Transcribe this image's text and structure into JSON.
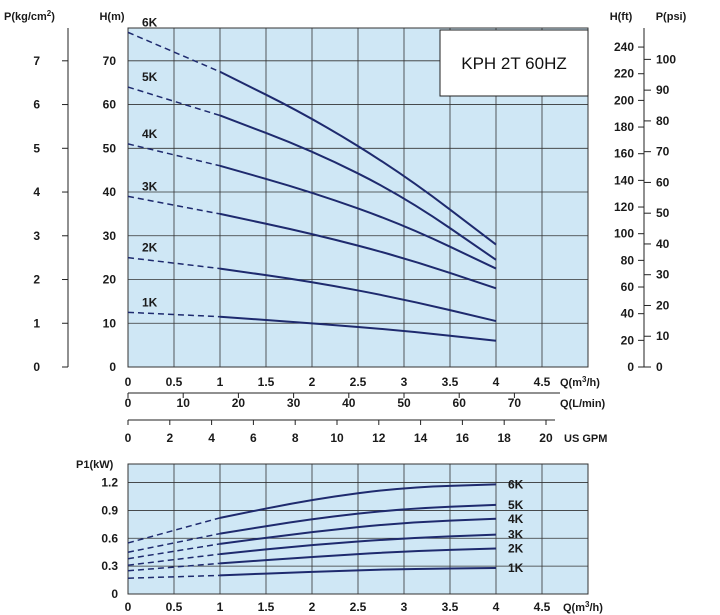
{
  "colors": {
    "plot_background": "#cfe7f5",
    "grid": "#333333",
    "curve": "#1e2a6e"
  },
  "chart_data": [
    {
      "type": "line",
      "title": "KPH 2T 60HZ",
      "grid": true,
      "x_axes": [
        {
          "label": "Q(m³/h)",
          "label_base": "Q(m",
          "label_sup": "3",
          "label_tail": "/h)",
          "ticks": [
            "0",
            "0.5",
            "1",
            "1.5",
            "2",
            "2.5",
            "3",
            "3.5",
            "4",
            "4.5"
          ],
          "range": [
            0,
            5
          ]
        },
        {
          "label": "Q(L/min)",
          "ticks": [
            "0",
            "10",
            "20",
            "30",
            "40",
            "50",
            "60",
            "70"
          ],
          "range": [
            0,
            83.333
          ]
        },
        {
          "label": "US GPM",
          "ticks": [
            "0",
            "2",
            "4",
            "6",
            "8",
            "10",
            "12",
            "14",
            "16",
            "18",
            "20"
          ],
          "range": [
            0,
            22.01
          ]
        }
      ],
      "y_axes": {
        "primary": {
          "label": "H(m)",
          "ticks": [
            "0",
            "10",
            "20",
            "30",
            "40",
            "50",
            "60",
            "70"
          ],
          "range": [
            0,
            77.5
          ]
        },
        "pressure": {
          "label": "P(kg/cm²)",
          "label_base": "P(kg/cm",
          "label_sup": "2",
          "label_tail": ")",
          "ticks": [
            "0",
            "1",
            "2",
            "3",
            "4",
            "5",
            "6",
            "7"
          ],
          "range": [
            0,
            7.75
          ]
        },
        "feet": {
          "label": "H(ft)",
          "ticks": [
            "0",
            "20",
            "40",
            "60",
            "80",
            "100",
            "120",
            "140",
            "160",
            "180",
            "200",
            "220",
            "240"
          ],
          "range": [
            0,
            254.3
          ]
        },
        "psi": {
          "label": "P(psi)",
          "ticks": [
            "0",
            "10",
            "20",
            "30",
            "40",
            "50",
            "60",
            "70",
            "80",
            "90",
            "100"
          ],
          "range": [
            0,
            110.2
          ]
        }
      },
      "series": [
        {
          "name": "1K",
          "x": [
            0,
            1,
            2,
            3,
            4
          ],
          "y": [
            12.5,
            11.5,
            10,
            8.3,
            6
          ],
          "dashed_until": 1
        },
        {
          "name": "2K",
          "x": [
            0,
            1,
            2,
            3,
            4
          ],
          "y": [
            25,
            22.5,
            19.5,
            15.5,
            10.5
          ],
          "dashed_until": 1
        },
        {
          "name": "3K",
          "x": [
            0,
            1,
            2,
            3,
            4
          ],
          "y": [
            39,
            35,
            30.5,
            25,
            18
          ],
          "dashed_until": 1
        },
        {
          "name": "4K",
          "x": [
            0,
            1,
            2,
            3,
            4
          ],
          "y": [
            51,
            46,
            40,
            32.5,
            22.5
          ],
          "dashed_until": 1
        },
        {
          "name": "5K",
          "x": [
            0,
            1,
            2,
            3,
            4
          ],
          "y": [
            64,
            57.5,
            49.5,
            39,
            24.5
          ],
          "dashed_until": 1
        },
        {
          "name": "6K",
          "x": [
            0,
            1,
            2,
            3,
            4
          ],
          "y": [
            76.5,
            67.5,
            57,
            44,
            28
          ],
          "dashed_until": 1
        }
      ]
    },
    {
      "type": "line",
      "title": "",
      "grid": true,
      "x_axis": {
        "label": "Q(m³/h)",
        "label_base": "Q(m",
        "label_sup": "3",
        "label_tail": "/h)",
        "ticks": [
          "0",
          "0.5",
          "1",
          "1.5",
          "2",
          "2.5",
          "3",
          "3.5",
          "4",
          "4.5"
        ],
        "range": [
          0,
          5
        ]
      },
      "y_axis": {
        "label": "P1(kW)",
        "ticks": [
          "0",
          "0.3",
          "0.6",
          "0.9",
          "1.2"
        ],
        "range": [
          0,
          1.4
        ]
      },
      "series": [
        {
          "name": "1K",
          "x": [
            0,
            1,
            2,
            3,
            4
          ],
          "y": [
            0.17,
            0.2,
            0.24,
            0.27,
            0.28
          ],
          "dashed_until": 1
        },
        {
          "name": "2K",
          "x": [
            0,
            1,
            2,
            3,
            4
          ],
          "y": [
            0.25,
            0.33,
            0.4,
            0.46,
            0.49
          ],
          "dashed_until": 1
        },
        {
          "name": "3K",
          "x": [
            0,
            1,
            2,
            3,
            4
          ],
          "y": [
            0.31,
            0.43,
            0.53,
            0.6,
            0.64
          ],
          "dashed_until": 1
        },
        {
          "name": "4K",
          "x": [
            0,
            1,
            2,
            3,
            4
          ],
          "y": [
            0.38,
            0.54,
            0.67,
            0.77,
            0.81
          ],
          "dashed_until": 1
        },
        {
          "name": "5K",
          "x": [
            0,
            1,
            2,
            3,
            4
          ],
          "y": [
            0.45,
            0.65,
            0.81,
            0.92,
            0.96
          ],
          "dashed_until": 1
        },
        {
          "name": "6K",
          "x": [
            0,
            1,
            2,
            3,
            4
          ],
          "y": [
            0.55,
            0.82,
            1.02,
            1.15,
            1.18
          ],
          "dashed_until": 1
        }
      ]
    }
  ]
}
